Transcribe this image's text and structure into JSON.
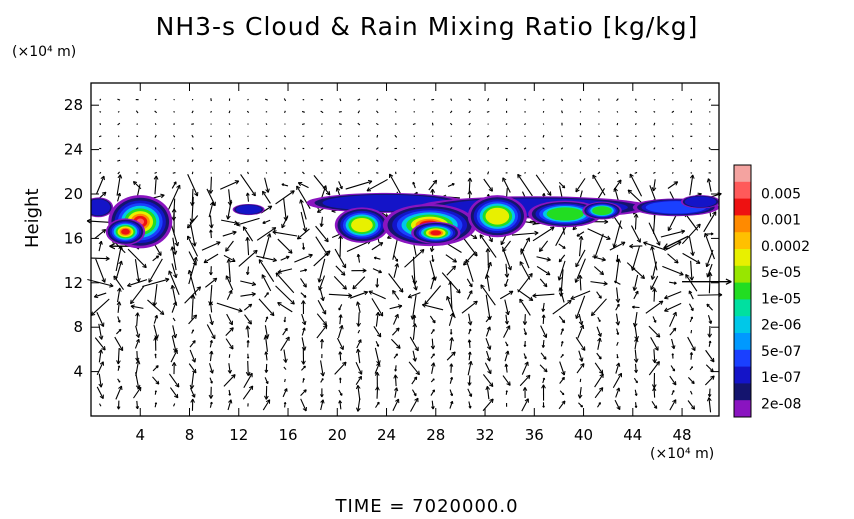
{
  "title": "NH3-s Cloud & Rain Mixing Ratio [kg/kg]",
  "y_unit": "(×10⁴ m)",
  "x_unit": "(×10⁴ m)",
  "time_label": "TIME = 7020000.0",
  "chart_data": {
    "type": "heatmap",
    "title": "NH3-s Cloud & Rain Mixing Ratio [kg/kg]",
    "xlabel": "",
    "ylabel": "Height",
    "xlim": [
      0,
      51
    ],
    "ylim": [
      0,
      30
    ],
    "x_ticks": [
      4,
      8,
      12,
      16,
      20,
      24,
      28,
      32,
      36,
      40,
      44,
      48
    ],
    "y_ticks": [
      4,
      8,
      12,
      16,
      20,
      24,
      28
    ],
    "colorbar": {
      "labels": [
        "0.005",
        "0.001",
        "0.0002",
        "5e-05",
        "1e-05",
        "2e-06",
        "5e-07",
        "1e-07",
        "2e-08"
      ],
      "colors": [
        "#f4a3a0",
        "#ff5a5a",
        "#ee1111",
        "#ff8a00",
        "#ffc000",
        "#e8f000",
        "#98e600",
        "#22dd22",
        "#00e0a0",
        "#00c8e8",
        "#0099ff",
        "#1a40ff",
        "#1414c8",
        "#14146e",
        "#8a14c0"
      ]
    },
    "cloud_regions": [
      {
        "x": [
          0,
          1.5
        ],
        "y": [
          18,
          19.5
        ],
        "max_level": "2e-08"
      },
      {
        "x": [
          1.5,
          6.5
        ],
        "y": [
          15,
          20
        ],
        "max_level": "0.001"
      },
      {
        "x": [
          11.5,
          14
        ],
        "y": [
          18.2,
          19
        ],
        "max_level": "1e-07"
      },
      {
        "x": [
          17.5,
          45
        ],
        "y": [
          15.5,
          20
        ],
        "max_level": "0.001"
      },
      {
        "x": [
          45,
          51
        ],
        "y": [
          18,
          19.8
        ],
        "max_level": "1e-07"
      }
    ],
    "wind_vectors": "arrow field overlay",
    "grid": true
  }
}
